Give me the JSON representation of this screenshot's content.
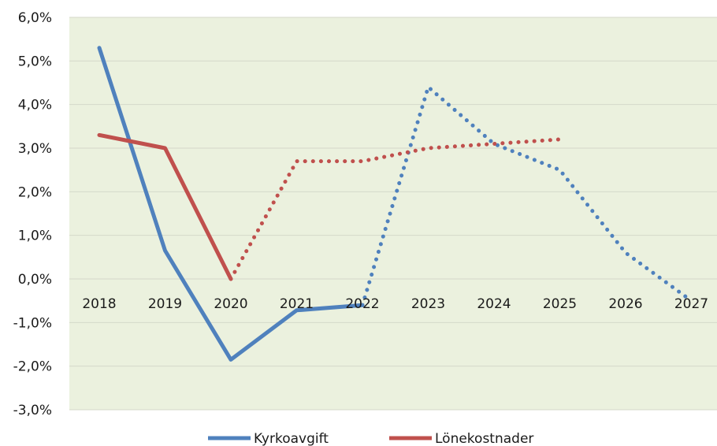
{
  "chart_data": {
    "type": "line",
    "title": "",
    "xlabel": "",
    "ylabel": "",
    "categories": [
      "2018",
      "2019",
      "2020",
      "2021",
      "2022",
      "2023",
      "2024",
      "2025",
      "2026",
      "2027"
    ],
    "y_ticks": [
      "6,0%",
      "5,0%",
      "4,0%",
      "3,0%",
      "2,0%",
      "1,0%",
      "0,0%",
      "-1,0%",
      "-2,0%",
      "-3,0%"
    ],
    "ylim": [
      -3.0,
      6.0
    ],
    "grid": true,
    "legend_position": "bottom",
    "plot_background": "#ebf1de",
    "series": [
      {
        "name": "Kyrkoavgift",
        "color": "#4f81bd",
        "values": [
          5.3,
          0.65,
          -1.85,
          -0.72,
          -0.6,
          4.4,
          3.1,
          2.5,
          0.6,
          -0.5
        ],
        "solid_until_index": 4
      },
      {
        "name": "Lönekostnader",
        "color": "#c0504d",
        "values": [
          3.3,
          3.0,
          0.0,
          2.7,
          2.7,
          3.0,
          3.1,
          3.2,
          null,
          null
        ],
        "solid_until_index": 2
      }
    ]
  }
}
